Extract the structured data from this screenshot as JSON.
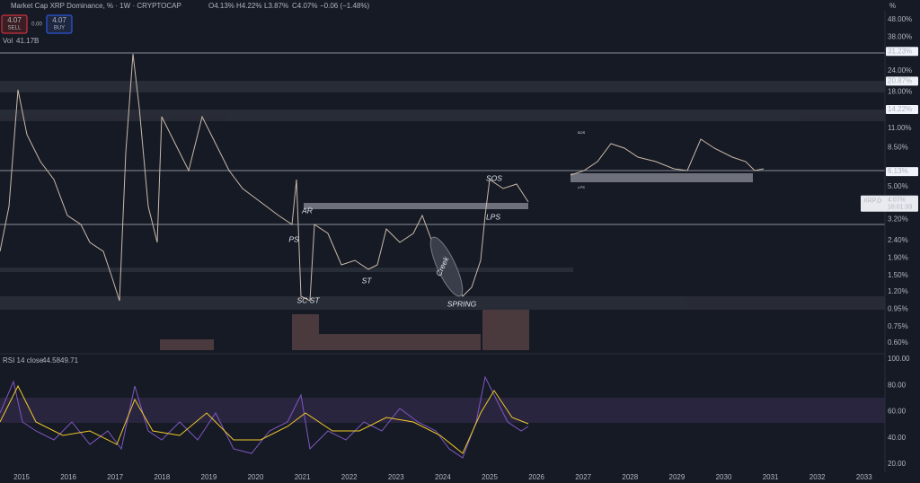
{
  "header": {
    "symbol": "Market Cap XRP Dominance, % · 1W · CRYPTOCAP",
    "ohlc": [
      "O4.13%",
      "H4.22%",
      "L3.87%",
      "C4.07%",
      "−0.06 (−1.48%)"
    ]
  },
  "trade": {
    "sell_price": "4.07",
    "sell": "SELL",
    "spread": "0.00",
    "buy_price": "4.07",
    "buy": "BUY"
  },
  "volume": {
    "label": "Vol",
    "value": "41.17B"
  },
  "price_axis": {
    "unit": "%",
    "ticks": [
      {
        "value": 48,
        "label": "48.00%"
      },
      {
        "value": 38,
        "label": "38.00%"
      },
      {
        "value": 31.23,
        "label": "31.23%",
        "boxed": true
      },
      {
        "value": 24,
        "label": "24.00%"
      },
      {
        "value": 20.87,
        "label": "20.87%",
        "boxed": true
      },
      {
        "value": 18,
        "label": "18.00%"
      },
      {
        "value": 14.22,
        "label": "14.22%",
        "boxed": true
      },
      {
        "value": 11,
        "label": "11.00%"
      },
      {
        "value": 8.5,
        "label": "8.50%"
      },
      {
        "value": 6.13,
        "label": "6.13%",
        "boxed": true
      },
      {
        "value": 5,
        "label": "5.00%"
      },
      {
        "value": 3.2,
        "label": "3.20%"
      },
      {
        "value": 2.4,
        "label": "2.40%"
      },
      {
        "value": 1.9,
        "label": "1.90%"
      },
      {
        "value": 1.5,
        "label": "1.50%"
      },
      {
        "value": 1.2,
        "label": "1.20%"
      },
      {
        "value": 0.95,
        "label": "0.95%"
      },
      {
        "value": 0.75,
        "label": "0.75%"
      },
      {
        "value": 0.6,
        "label": "0.60%"
      }
    ]
  },
  "current": {
    "symbol": "XRP.D",
    "value": {
      "value": 4.07,
      "label": "4.07%"
    },
    "countdown": "16:01:33"
  },
  "rsi": {
    "label": "RSI 14 close",
    "values": [
      "44.58",
      "49.71"
    ],
    "ticks": [
      {
        "value": 100,
        "label": "100.00"
      },
      {
        "value": 80,
        "label": "80.00"
      },
      {
        "value": 60,
        "label": "60.00"
      },
      {
        "value": 40,
        "label": "40.00"
      },
      {
        "value": 20,
        "label": "20.00"
      }
    ]
  },
  "time_axis": {
    "years": [
      2015,
      2016,
      2017,
      2018,
      2019,
      2020,
      2021,
      2022,
      2023,
      2024,
      2025,
      2026,
      2027,
      2028,
      2029,
      2030,
      2031,
      2032,
      2033
    ]
  },
  "annotations": [
    "SOS",
    "AR",
    "PS",
    "LPS",
    "ST",
    "SC ST",
    "SPRING",
    "Creek",
    "SOS",
    "LPS"
  ]
}
